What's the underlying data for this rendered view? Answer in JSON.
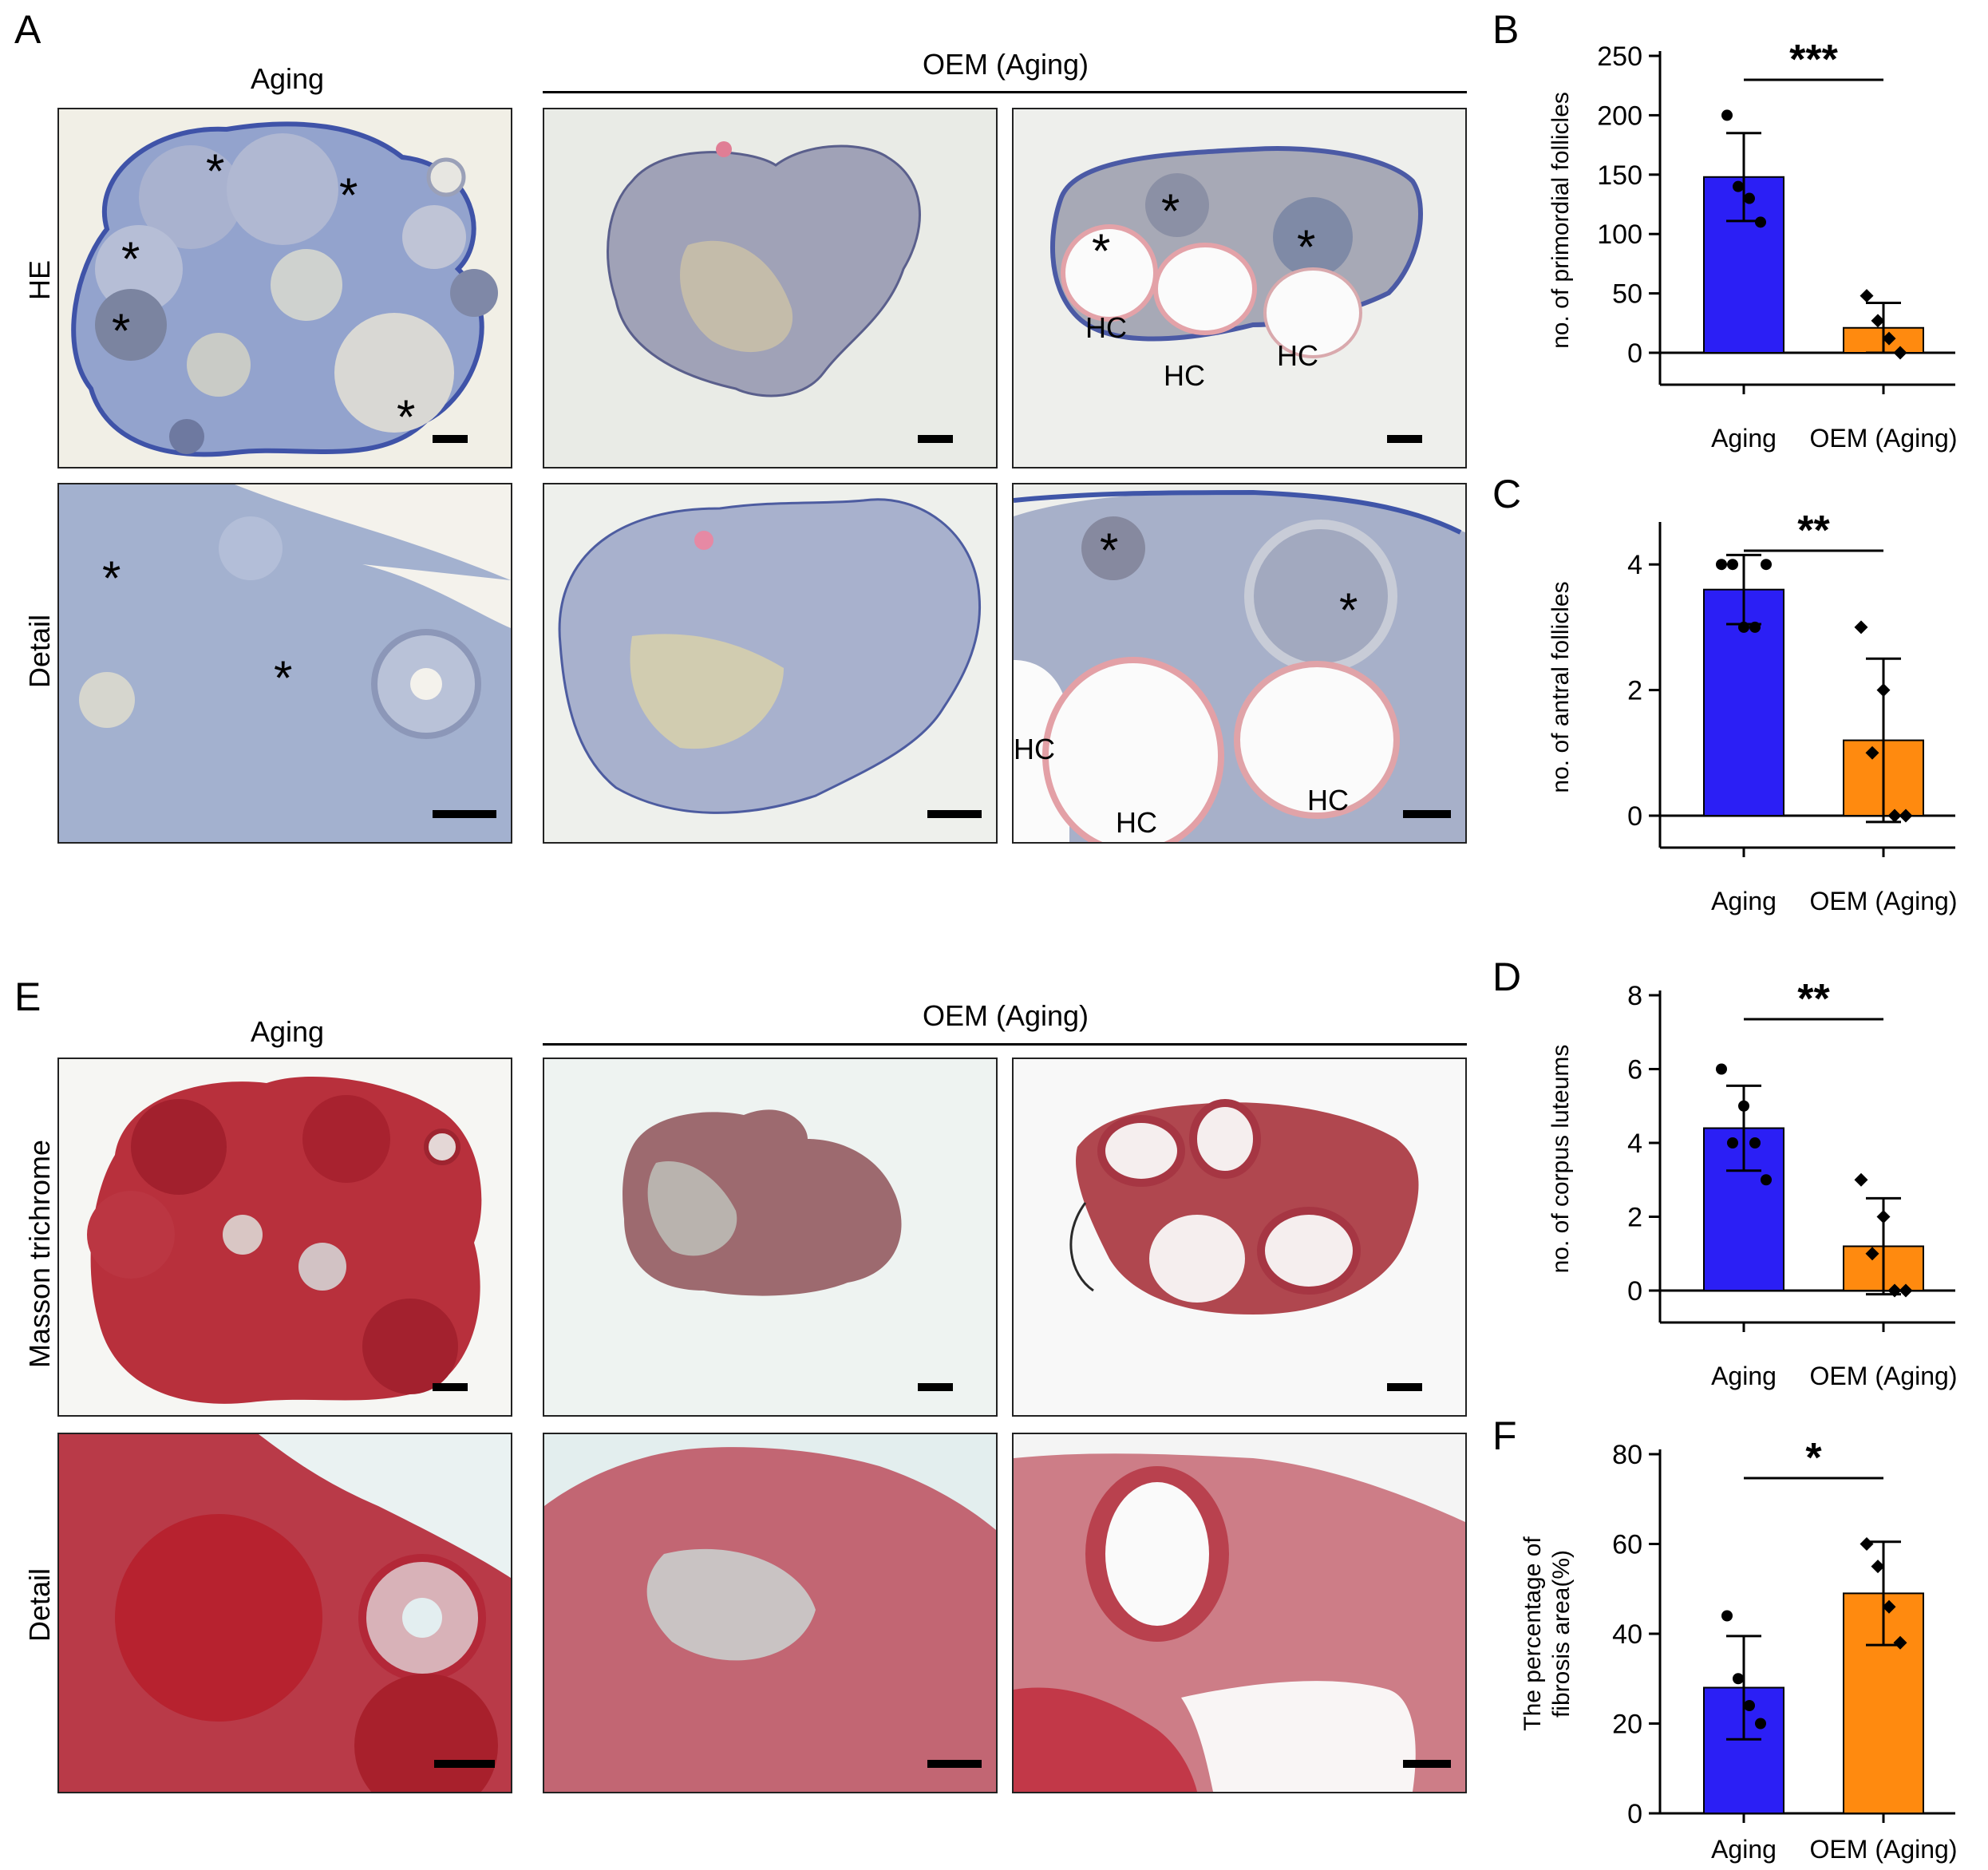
{
  "figure": {
    "panel_letters": {
      "A": "A",
      "B": "B",
      "C": "C",
      "D": "D",
      "E": "E",
      "F": "F"
    },
    "section_A": {
      "col_titles": {
        "aging": "Aging",
        "oem": "OEM (Aging)"
      },
      "row_labels": {
        "he": "HE",
        "detail": "Detail"
      },
      "annotations": {
        "star": "*",
        "hc": "HC"
      }
    },
    "section_E": {
      "col_titles": {
        "aging": "Aging",
        "oem": "OEM (Aging)"
      },
      "row_labels": {
        "masson": "Masson trichrome",
        "detail": "Detail"
      }
    },
    "colors": {
      "aging": "#2b1ff5",
      "oem": "#ff8a0f",
      "he_bg": "#eceee9",
      "he_tissue": "#9aa6c8",
      "masson_tissue": "#b9323e",
      "masson_bg": "#f2f5f3"
    }
  },
  "chart_data": [
    {
      "id": "B",
      "type": "bar",
      "categories": [
        "Aging",
        "OEM (Aging)"
      ],
      "values": [
        148,
        21
      ],
      "errors": [
        37,
        21
      ],
      "points": [
        [
          200,
          140,
          130,
          110
        ],
        [
          48,
          27,
          12,
          0
        ]
      ],
      "ylabel": "no. of primordial follicles",
      "ylim": [
        0,
        250
      ],
      "yticks": [
        0,
        50,
        100,
        150,
        200,
        250
      ],
      "significance": "***"
    },
    {
      "id": "C",
      "type": "bar",
      "categories": [
        "Aging",
        "OEM (Aging)"
      ],
      "values": [
        3.6,
        1.2
      ],
      "errors": [
        0.55,
        1.3
      ],
      "points": [
        [
          4,
          4,
          3,
          3,
          4
        ],
        [
          3,
          1,
          2,
          0,
          0
        ]
      ],
      "ylabel": "no. of antral follicles",
      "ylim": [
        0,
        4.6
      ],
      "yticks": [
        0,
        2,
        4
      ],
      "significance": "**"
    },
    {
      "id": "D",
      "type": "bar",
      "categories": [
        "Aging",
        "OEM (Aging)"
      ],
      "values": [
        4.4,
        1.2
      ],
      "errors": [
        1.15,
        1.3
      ],
      "points": [
        [
          6,
          4,
          5,
          4,
          3
        ],
        [
          3,
          1,
          2,
          0,
          0
        ]
      ],
      "ylabel": "no. of corpus luteums",
      "ylim": [
        0,
        8
      ],
      "yticks": [
        0,
        2,
        4,
        6,
        8
      ],
      "significance": "**"
    },
    {
      "id": "F",
      "type": "bar",
      "categories": [
        "Aging",
        "OEM (Aging)"
      ],
      "values": [
        28,
        49
      ],
      "errors": [
        11.5,
        11.5
      ],
      "points": [
        [
          44,
          30,
          24,
          20
        ],
        [
          60,
          55,
          46,
          38
        ]
      ],
      "ylabel": "The percentage of fibrosis area(%)",
      "ylim": [
        0,
        80
      ],
      "yticks": [
        0,
        20,
        40,
        60,
        80
      ],
      "significance": "*"
    }
  ]
}
